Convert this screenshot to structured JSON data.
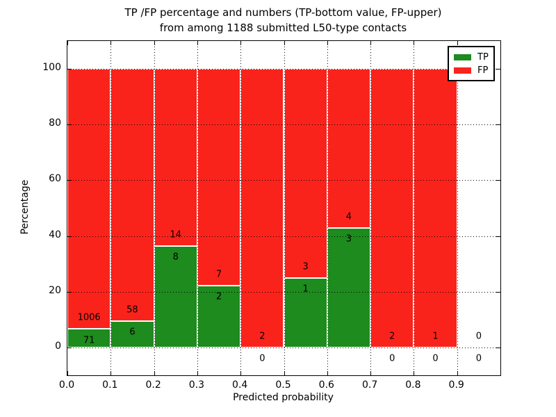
{
  "title": {
    "line1": "TP /FP percentage and numbers (TP-bottom value, FP-upper)",
    "line2": "from among 1188 submitted L50-type contacts"
  },
  "chart_data": {
    "type": "bar",
    "stacked": true,
    "title": "TP /FP percentage and numbers (TP-bottom value, FP-upper) from among 1188 submitted L50-type contacts",
    "xlabel": "Predicted probability",
    "ylabel": "Percentage",
    "xlim": [
      0.0,
      1.0
    ],
    "ylim": [
      -10,
      110
    ],
    "grid": true,
    "legend_position": "upper right",
    "series": [
      {
        "name": "TP",
        "color": "#1d8b1d"
      },
      {
        "name": "FP",
        "color": "#fa231c"
      }
    ],
    "xticks": [
      {
        "pos": 0.0,
        "label": "0.0"
      },
      {
        "pos": 0.1,
        "label": "0.1"
      },
      {
        "pos": 0.2,
        "label": "0.2"
      },
      {
        "pos": 0.3,
        "label": "0.3"
      },
      {
        "pos": 0.4,
        "label": "0.4"
      },
      {
        "pos": 0.5,
        "label": "0.5"
      },
      {
        "pos": 0.6,
        "label": "0.6"
      },
      {
        "pos": 0.7,
        "label": "0.7"
      },
      {
        "pos": 0.8,
        "label": "0.8"
      },
      {
        "pos": 0.9,
        "label": "0.9"
      }
    ],
    "yticks": [
      {
        "pos": 0,
        "label": "0"
      },
      {
        "pos": 20,
        "label": "20"
      },
      {
        "pos": 40,
        "label": "40"
      },
      {
        "pos": 60,
        "label": "60"
      },
      {
        "pos": 80,
        "label": "80"
      },
      {
        "pos": 100,
        "label": "100"
      }
    ],
    "bins": [
      {
        "x_start": 0.0,
        "x_end": 0.1,
        "tp": 71,
        "fp": 1006,
        "tp_pct": 6.6,
        "fp_pct": 93.4
      },
      {
        "x_start": 0.1,
        "x_end": 0.2,
        "tp": 6,
        "fp": 58,
        "tp_pct": 9.4,
        "fp_pct": 90.6
      },
      {
        "x_start": 0.2,
        "x_end": 0.3,
        "tp": 8,
        "fp": 14,
        "tp_pct": 36.4,
        "fp_pct": 63.6
      },
      {
        "x_start": 0.3,
        "x_end": 0.4,
        "tp": 2,
        "fp": 7,
        "tp_pct": 22.2,
        "fp_pct": 77.8
      },
      {
        "x_start": 0.4,
        "x_end": 0.5,
        "tp": 0,
        "fp": 2,
        "tp_pct": 0.0,
        "fp_pct": 100.0
      },
      {
        "x_start": 0.5,
        "x_end": 0.6,
        "tp": 1,
        "fp": 3,
        "tp_pct": 25.0,
        "fp_pct": 75.0
      },
      {
        "x_start": 0.6,
        "x_end": 0.7,
        "tp": 3,
        "fp": 4,
        "tp_pct": 42.9,
        "fp_pct": 57.1
      },
      {
        "x_start": 0.7,
        "x_end": 0.8,
        "tp": 0,
        "fp": 2,
        "tp_pct": 0.0,
        "fp_pct": 100.0
      },
      {
        "x_start": 0.8,
        "x_end": 0.9,
        "tp": 0,
        "fp": 1,
        "tp_pct": 0.0,
        "fp_pct": 100.0
      },
      {
        "x_start": 0.9,
        "x_end": 1.0,
        "tp": 0,
        "fp": 0,
        "tp_pct": null,
        "fp_pct": null
      }
    ]
  }
}
